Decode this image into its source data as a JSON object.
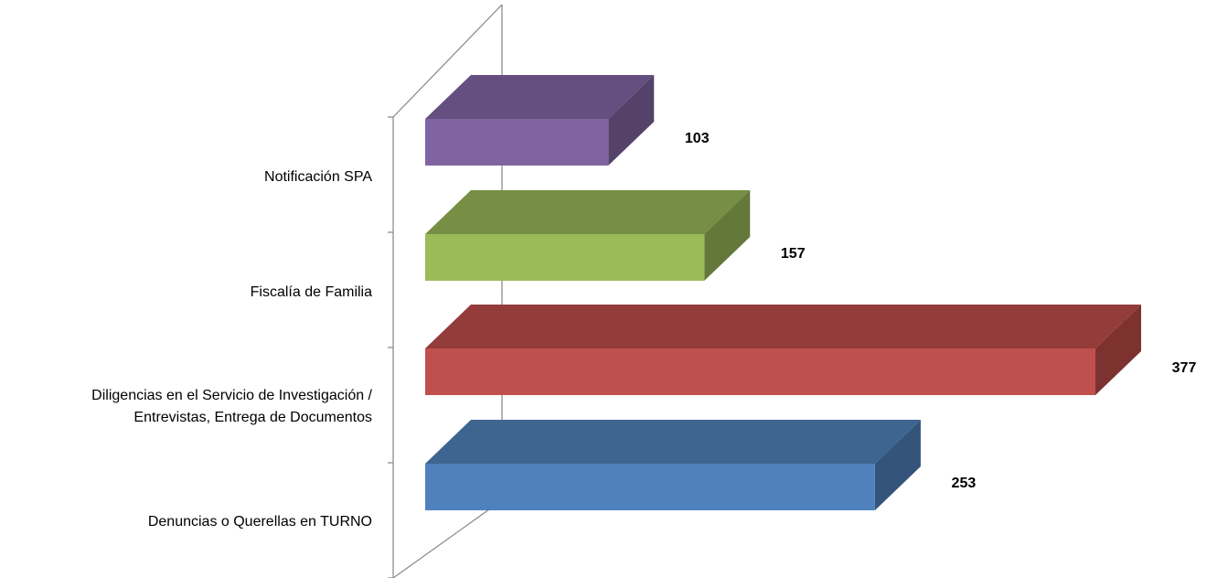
{
  "chart_data": {
    "type": "bar",
    "orientation": "horizontal",
    "style": "3d",
    "categories": [
      "Denuncias o Querellas en TURNO",
      "Diligencias en el Servicio de Investigación / Entrevistas, Entrega de Documentos",
      "Fiscalía de Familia",
      "Notificación SPA"
    ],
    "category_label_lines": [
      [
        "Denuncias o Querellas en TURNO"
      ],
      [
        "Diligencias en el Servicio de Investigación /",
        "Entrevistas, Entrega de Documentos"
      ],
      [
        "Fiscalía de Familia"
      ],
      [
        "Notificación SPA"
      ]
    ],
    "values": [
      253,
      377,
      157,
      103
    ],
    "value_labels": [
      "253",
      "377",
      "157",
      "103"
    ],
    "bar_colors": [
      {
        "front": "#4f81bd",
        "top": "#3e6490",
        "side": "#34547b"
      },
      {
        "front": "#c0504d",
        "top": "#943c3a",
        "side": "#7d3230"
      },
      {
        "front": "#9bbb59",
        "top": "#778f44",
        "side": "#64783a"
      },
      {
        "front": "#8064a2",
        "top": "#654f80",
        "side": "#54426b"
      }
    ],
    "xlim": [
      0,
      377
    ],
    "grid": false,
    "legend": "none",
    "title": "",
    "xlabel": "",
    "ylabel": ""
  }
}
